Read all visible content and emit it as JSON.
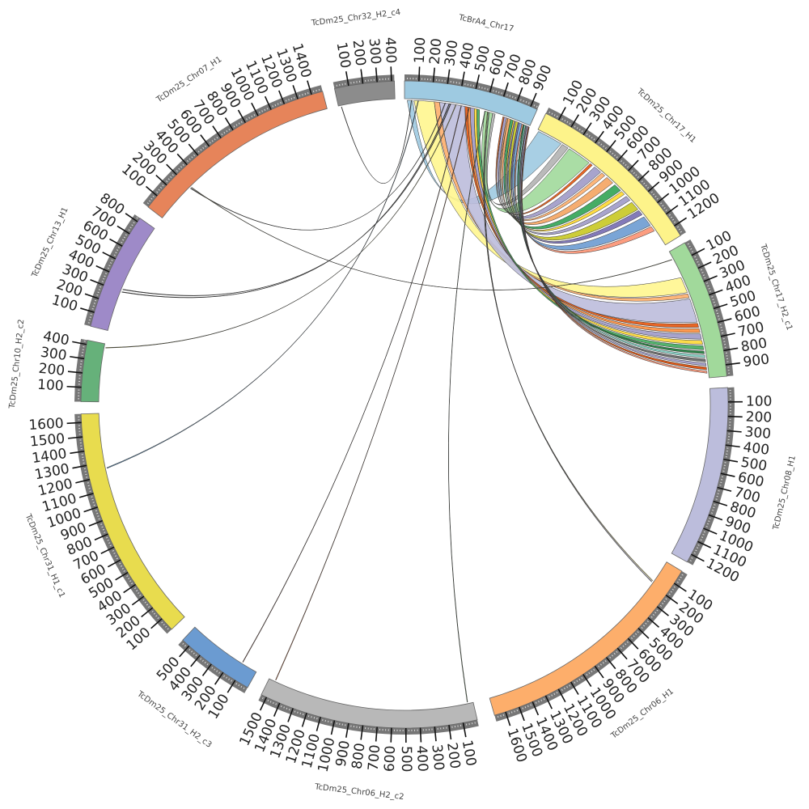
{
  "chart_data": {
    "type": "chord",
    "title": "",
    "tick_step": 100,
    "chromosomes": [
      {
        "id": "BrA4",
        "name": "TcBrA4_Chr17",
        "length": 950,
        "max_tick": 900,
        "color": "#9ecae1"
      },
      {
        "id": "H1",
        "name": "TcDm25_Chr17_H1",
        "length": 1280,
        "max_tick": 1200,
        "color": "#fdf38a"
      },
      {
        "id": "H2c1",
        "name": "TcDm25_Chr17_H2_c1",
        "length": 980,
        "max_tick": 900,
        "color": "#a1d99b"
      },
      {
        "id": "C08",
        "name": "TcDm25_Chr08_H1",
        "length": 1260,
        "max_tick": 1200,
        "color": "#bcbddc"
      },
      {
        "id": "C06H1",
        "name": "TcDm25_Chr06_H1",
        "length": 1680,
        "max_tick": 1600,
        "color": "#fdae6b"
      },
      {
        "id": "C06H2",
        "name": "TcDm25_Chr06_H2_c2",
        "length": 1540,
        "max_tick": 1500,
        "color": "#b8b8b8"
      },
      {
        "id": "C31H2",
        "name": "TcDm25_Chr31_H2_c3",
        "length": 560,
        "max_tick": 500,
        "color": "#6b9bd1"
      },
      {
        "id": "C31H1",
        "name": "TcDm25_Chr31_H1_c1",
        "length": 1660,
        "max_tick": 1600,
        "color": "#e8dc4e"
      },
      {
        "id": "C10",
        "name": "TcDm25_Chr10_H2_c2",
        "length": 430,
        "max_tick": 400,
        "color": "#66b17a"
      },
      {
        "id": "C13",
        "name": "TcDm25_Chr13_H1",
        "length": 830,
        "max_tick": 800,
        "color": "#9e8ac8"
      },
      {
        "id": "C07",
        "name": "TcDm25_Chr07_H1",
        "length": 1480,
        "max_tick": 1400,
        "color": "#e6845a"
      },
      {
        "id": "C32",
        "name": "TcDm25_Chr32_H2_c4",
        "length": 420,
        "max_tick": 400,
        "color": "#8c8c8c"
      }
    ],
    "links": [
      [
        "BrA4",
        20,
        60,
        "H1",
        10,
        200,
        "#9ecae1"
      ],
      [
        "BrA4",
        660,
        680,
        "H1",
        210,
        260,
        "#b3b3b3"
      ],
      [
        "BrA4",
        600,
        660,
        "H1",
        270,
        450,
        "#a1d99b"
      ],
      [
        "BrA4",
        740,
        750,
        "H1",
        460,
        480,
        "#e6550d"
      ],
      [
        "BrA4",
        750,
        770,
        "H1",
        500,
        560,
        "#9e9ac8"
      ],
      [
        "BrA4",
        770,
        780,
        "H1",
        570,
        600,
        "#fdae6b"
      ],
      [
        "BrA4",
        780,
        800,
        "H1",
        620,
        680,
        "#f4a460"
      ],
      [
        "BrA4",
        800,
        820,
        "H1",
        700,
        760,
        "#31a354"
      ],
      [
        "BrA4",
        820,
        830,
        "H1",
        770,
        800,
        "#ffd92f"
      ],
      [
        "BrA4",
        830,
        840,
        "H1",
        820,
        860,
        "#9e9ac8"
      ],
      [
        "BrA4",
        840,
        860,
        "H1",
        880,
        950,
        "#c8c822"
      ],
      [
        "BrA4",
        860,
        870,
        "H1",
        960,
        1000,
        "#756bb1"
      ],
      [
        "BrA4",
        870,
        890,
        "H1",
        1020,
        1100,
        "#6b9bd1"
      ],
      [
        "BrA4",
        890,
        900,
        "H1",
        1110,
        1150,
        "#fc9272"
      ],
      [
        "BrA4",
        70,
        220,
        "H2c1",
        210,
        330,
        "#fff68f"
      ],
      [
        "BrA4",
        220,
        260,
        "H2c1",
        340,
        370,
        "#fdae6b"
      ],
      [
        "BrA4",
        260,
        450,
        "H2c1",
        380,
        560,
        "#bcbddc"
      ],
      [
        "BrA4",
        450,
        470,
        "H2c1",
        570,
        600,
        "#e6550d"
      ],
      [
        "BrA4",
        470,
        490,
        "H2c1",
        610,
        640,
        "#fd8d3c"
      ],
      [
        "BrA4",
        490,
        520,
        "H2c1",
        650,
        690,
        "#9e9ac8"
      ],
      [
        "BrA4",
        520,
        540,
        "H2c1",
        700,
        730,
        "#fdd835"
      ],
      [
        "BrA4",
        540,
        560,
        "H2c1",
        740,
        770,
        "#41ab5d"
      ],
      [
        "BrA4",
        900,
        910,
        "H2c1",
        780,
        800,
        "#1b7837"
      ],
      [
        "BrA4",
        910,
        920,
        "H2c1",
        810,
        830,
        "#80cdc1"
      ],
      [
        "BrA4",
        920,
        930,
        "H2c1",
        840,
        860,
        "#636363"
      ],
      [
        "BrA4",
        930,
        940,
        "H2c1",
        870,
        890,
        "#9e9ac8"
      ],
      [
        "BrA4",
        940,
        945,
        "H2c1",
        900,
        920,
        "#d94801"
      ],
      [
        "BrA4",
        945,
        950,
        "H2c1",
        930,
        945,
        "#fc9272"
      ],
      [
        "BrA4",
        300,
        304,
        "C07",
        300,
        304,
        "#333333"
      ],
      [
        "BrA4",
        330,
        334,
        "C13",
        300,
        304,
        "#222222"
      ],
      [
        "BrA4",
        340,
        344,
        "C13",
        320,
        324,
        "#222222"
      ],
      [
        "BrA4",
        380,
        384,
        "C10",
        400,
        404,
        "#c8c844"
      ],
      [
        "BrA4",
        100,
        104,
        "C31H1",
        1250,
        1256,
        "#4682b4"
      ],
      [
        "BrA4",
        420,
        424,
        "C31H2",
        120,
        124,
        "#8c4a3a"
      ],
      [
        "BrA4",
        480,
        484,
        "C06H2",
        1490,
        1494,
        "#e6550d"
      ],
      [
        "BrA4",
        600,
        604,
        "C06H2",
        40,
        44,
        "#74a96c"
      ],
      [
        "BrA4",
        620,
        624,
        "C06H1",
        170,
        174,
        "#e8d84a"
      ],
      [
        "BrA4",
        630,
        634,
        "C06H1",
        180,
        184,
        "#9e9ac8"
      ],
      [
        "BrA4",
        50,
        53,
        "C32",
        20,
        23,
        "#222222"
      ],
      [
        "C07",
        310,
        313,
        "H2c1",
        60,
        63,
        "#999944"
      ]
    ]
  }
}
